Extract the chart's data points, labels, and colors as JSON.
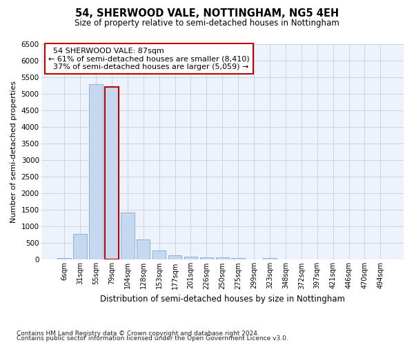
{
  "title1": "54, SHERWOOD VALE, NOTTINGHAM, NG5 4EH",
  "title2": "Size of property relative to semi-detached houses in Nottingham",
  "xlabel": "Distribution of semi-detached houses by size in Nottingham",
  "ylabel": "Number of semi-detached properties",
  "footnote1": "Contains HM Land Registry data © Crown copyright and database right 2024.",
  "footnote2": "Contains public sector information licensed under the Open Government Licence v3.0.",
  "property_label": "54 SHERWOOD VALE: 87sqm",
  "pct_smaller": 61,
  "n_smaller": "8,410",
  "pct_larger": 37,
  "n_larger": "5,059",
  "highlight_bin_index": 3,
  "categories": [
    "6sqm",
    "31sqm",
    "55sqm",
    "79sqm",
    "104sqm",
    "128sqm",
    "153sqm",
    "177sqm",
    "201sqm",
    "226sqm",
    "250sqm",
    "275sqm",
    "299sqm",
    "323sqm",
    "348sqm",
    "372sqm",
    "397sqm",
    "421sqm",
    "446sqm",
    "470sqm",
    "494sqm"
  ],
  "values": [
    50,
    780,
    5300,
    5200,
    1420,
    620,
    270,
    130,
    100,
    80,
    70,
    50,
    0,
    50,
    0,
    0,
    0,
    0,
    0,
    0,
    0
  ],
  "bar_color": "#c5d8f0",
  "bar_edge_color": "#7badd6",
  "highlight_bar_edge_color": "#c00000",
  "annotation_box_edge_color": "#c00000",
  "grid_color": "#c8d4e8",
  "background_color": "#eef2fa",
  "ylim": [
    0,
    6500
  ],
  "yticks": [
    0,
    500,
    1000,
    1500,
    2000,
    2500,
    3000,
    3500,
    4000,
    4500,
    5000,
    5500,
    6000,
    6500
  ]
}
